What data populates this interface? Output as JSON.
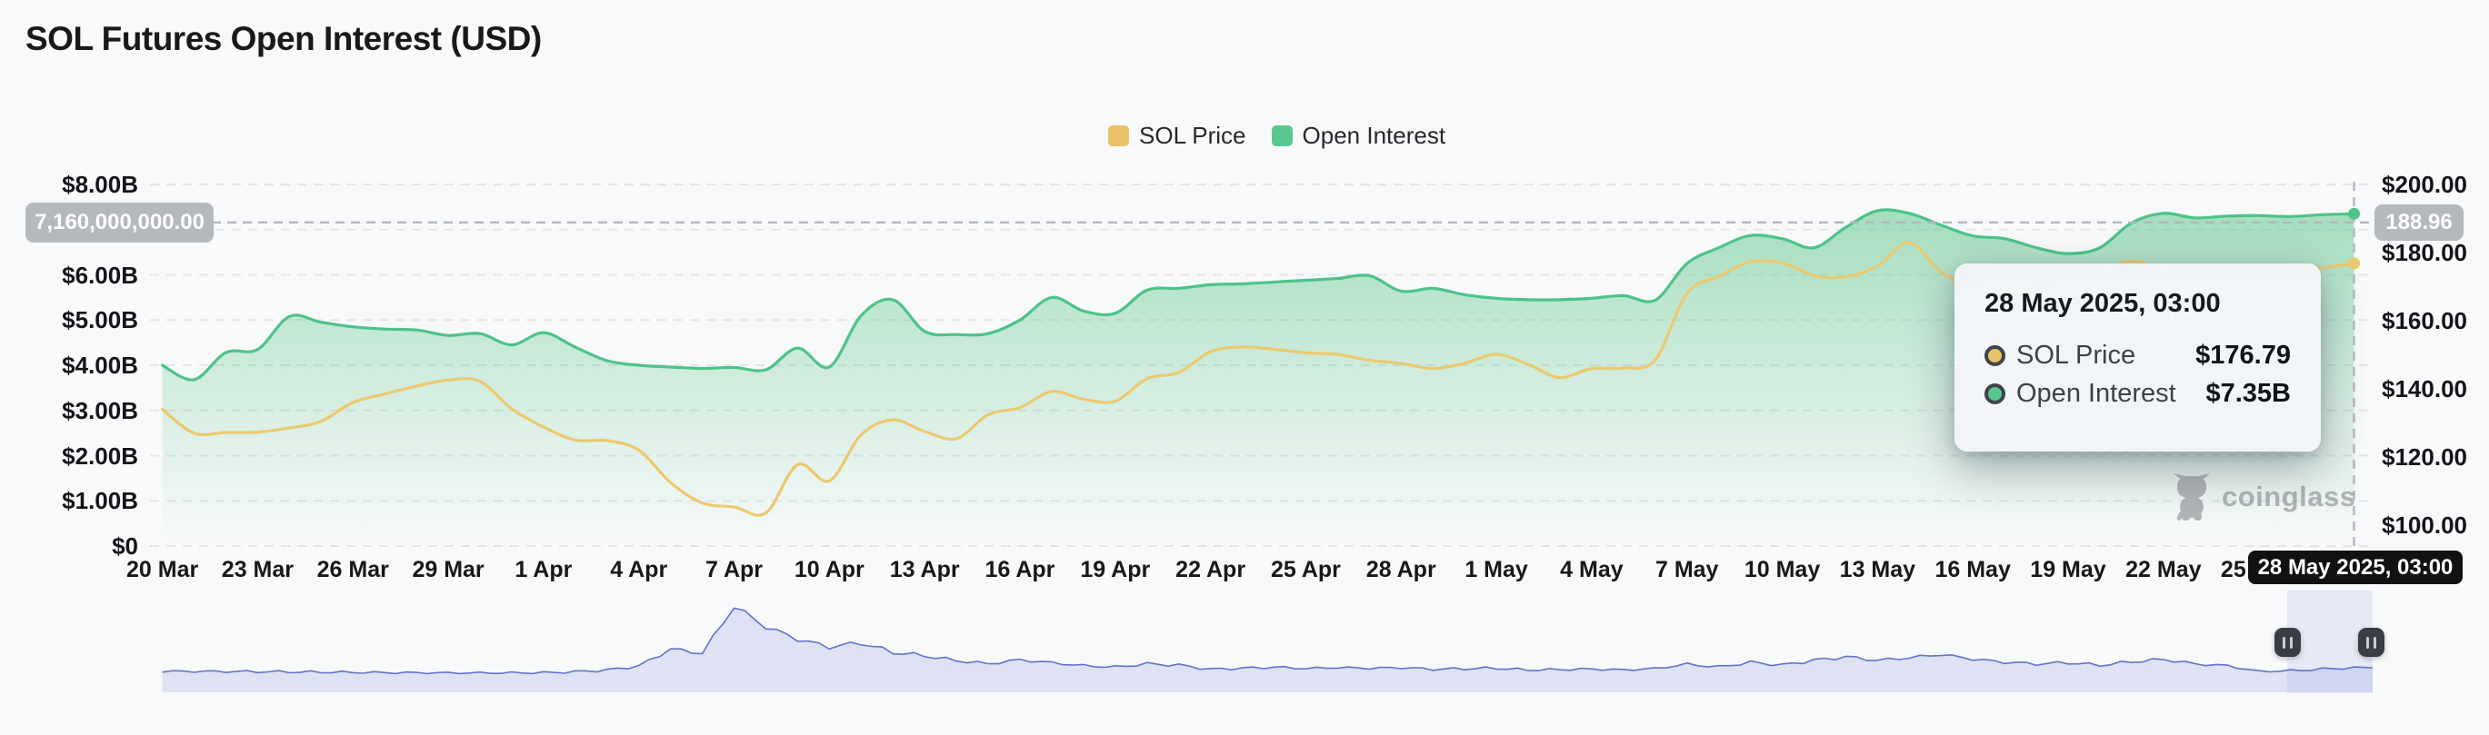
{
  "page": {
    "background": "#f8f9fa"
  },
  "header": {
    "title": "SOL Futures Open Interest (USD)"
  },
  "legend": {
    "items": [
      {
        "label": "SOL Price",
        "color": "#e7c269"
      },
      {
        "label": "Open Interest",
        "color": "#57c78d"
      }
    ]
  },
  "axes": {
    "left": {
      "ticks": [
        {
          "label": "$8.00B",
          "value": 8
        },
        {
          "label": "$6.00B",
          "value": 6
        },
        {
          "label": "$5.00B",
          "value": 5
        },
        {
          "label": "$4.00B",
          "value": 4
        },
        {
          "label": "$3.00B",
          "value": 3
        },
        {
          "label": "$2.00B",
          "value": 2
        },
        {
          "label": "$1.00B",
          "value": 1
        },
        {
          "label": "$0",
          "value": 0
        }
      ]
    },
    "right": {
      "ticks": [
        {
          "label": "$200.00",
          "value": 200
        },
        {
          "label": "$180.00",
          "value": 180
        },
        {
          "label": "$160.00",
          "value": 160
        },
        {
          "label": "$140.00",
          "value": 140
        },
        {
          "label": "$120.00",
          "value": 120
        },
        {
          "label": "$100.00",
          "value": 100
        }
      ]
    },
    "x": {
      "ticks": [
        "20 Mar",
        "23 Mar",
        "26 Mar",
        "29 Mar",
        "1 Apr",
        "4 Apr",
        "7 Apr",
        "10 Apr",
        "13 Apr",
        "16 Apr",
        "19 Apr",
        "22 Apr",
        "25 Apr",
        "28 Apr",
        "1 May",
        "4 May",
        "7 May",
        "10 May",
        "13 May",
        "16 May",
        "19 May",
        "22 May",
        "25 May"
      ],
      "tick_interval_days": 3
    }
  },
  "crosshair": {
    "left_axis_label": "7,160,000,000.00",
    "right_axis_label": "188.96",
    "date_label": "28 May 2025, 03:00",
    "day_index": 69,
    "oi_value": 7.16
  },
  "tooltip": {
    "date": "28 May 2025, 03:00",
    "rows": [
      {
        "label": "SOL Price",
        "value": "$176.79",
        "color": "#e7c269"
      },
      {
        "label": "Open Interest",
        "value": "$7.35B",
        "color": "#57c78d"
      }
    ]
  },
  "watermark": {
    "label": "coinglass"
  },
  "colors": {
    "background": "#f8f9fa",
    "oi_line": "#4cc389",
    "oi_fill": "#60c78d",
    "price_line": "#ecc96f",
    "grid": "#e3e5e8",
    "crosshair": "#b3b7bd",
    "pill_bg": "#b5b8bd",
    "date_pill_bg": "#101113",
    "nav_line": "#5f74c9",
    "nav_fill": "#dfe2f3",
    "handle_bg": "#3a3d45",
    "tooltip_bg": "#f3f5f8",
    "watermark_gray": "#9a9ea2"
  },
  "chart_data": {
    "type": "line",
    "title": "SOL Futures Open Interest (USD)",
    "grid": "dashed-horizontal",
    "legend_position": "top-center",
    "left_axis": {
      "name": "Open Interest (USD)",
      "min": 0,
      "max": 8,
      "unit": "billions USD"
    },
    "right_axis": {
      "name": "SOL Price (USD)",
      "min": 100,
      "max": 200
    },
    "x_dates": [
      "20 Mar",
      "21 Mar",
      "22 Mar",
      "23 Mar",
      "24 Mar",
      "25 Mar",
      "26 Mar",
      "27 Mar",
      "28 Mar",
      "29 Mar",
      "30 Mar",
      "31 Mar",
      "1 Apr",
      "2 Apr",
      "3 Apr",
      "4 Apr",
      "5 Apr",
      "6 Apr",
      "7 Apr",
      "8 Apr",
      "9 Apr",
      "10 Apr",
      "11 Apr",
      "12 Apr",
      "13 Apr",
      "14 Apr",
      "15 Apr",
      "16 Apr",
      "17 Apr",
      "18 Apr",
      "19 Apr",
      "20 Apr",
      "21 Apr",
      "22 Apr",
      "23 Apr",
      "24 Apr",
      "25 Apr",
      "26 Apr",
      "27 Apr",
      "28 Apr",
      "29 Apr",
      "30 Apr",
      "1 May",
      "2 May",
      "3 May",
      "4 May",
      "5 May",
      "6 May",
      "7 May",
      "8 May",
      "9 May",
      "10 May",
      "11 May",
      "12 May",
      "13 May",
      "14 May",
      "15 May",
      "16 May",
      "17 May",
      "18 May",
      "19 May",
      "20 May",
      "21 May",
      "22 May",
      "23 May",
      "24 May",
      "25 May",
      "26 May",
      "27 May",
      "28 May"
    ],
    "series": [
      {
        "name": "SOL Price",
        "yaxis": "right",
        "style": "line",
        "color": "#ecc96f",
        "values": [
          134.0,
          127.0,
          127.2,
          127.3,
          128.5,
          130.5,
          136.0,
          138.5,
          140.8,
          142.6,
          142.2,
          134.1,
          128.8,
          125.0,
          124.8,
          122.0,
          112.5,
          106.5,
          105.3,
          103.6,
          117.8,
          113.0,
          126.5,
          130.9,
          127.5,
          125.4,
          132.4,
          134.5,
          139.2,
          137.0,
          136.4,
          143.0,
          144.8,
          150.9,
          152.3,
          151.6,
          150.6,
          150.1,
          148.4,
          147.5,
          146.0,
          147.5,
          150.1,
          147.2,
          143.3,
          146.0,
          146.1,
          148.5,
          168.0,
          173.0,
          177.3,
          177.0,
          173.2,
          172.9,
          176.0,
          183.0,
          174.3,
          170.0,
          168.5,
          169.5,
          172.0,
          174.5,
          177.5,
          175.0,
          172.5,
          172.0,
          173.5,
          174.1,
          175.5,
          176.79
        ]
      },
      {
        "name": "Open Interest",
        "yaxis": "left",
        "style": "area",
        "color": "#4cc389",
        "values": [
          4.0,
          3.68,
          4.28,
          4.35,
          5.08,
          4.95,
          4.85,
          4.8,
          4.78,
          4.66,
          4.7,
          4.45,
          4.72,
          4.4,
          4.1,
          4.0,
          3.96,
          3.93,
          3.95,
          3.9,
          4.38,
          3.96,
          5.1,
          5.45,
          4.75,
          4.68,
          4.7,
          5.0,
          5.5,
          5.2,
          5.15,
          5.66,
          5.7,
          5.78,
          5.8,
          5.84,
          5.88,
          5.92,
          5.98,
          5.64,
          5.7,
          5.56,
          5.48,
          5.45,
          5.45,
          5.48,
          5.54,
          5.44,
          6.25,
          6.6,
          6.87,
          6.8,
          6.6,
          7.05,
          7.42,
          7.36,
          7.1,
          6.86,
          6.8,
          6.6,
          6.47,
          6.6,
          7.15,
          7.36,
          7.26,
          7.3,
          7.31,
          7.29,
          7.33,
          7.35
        ]
      }
    ],
    "navigator": {
      "values": [
        0.1,
        0.1,
        0.1,
        0.1,
        0.1,
        0.1,
        0.1,
        0.1,
        0.1,
        0.1,
        0.1,
        0.1,
        0.1,
        0.11,
        0.13,
        0.18,
        0.4,
        0.34,
        0.95,
        0.68,
        0.52,
        0.42,
        0.48,
        0.36,
        0.32,
        0.26,
        0.22,
        0.28,
        0.24,
        0.2,
        0.18,
        0.22,
        0.2,
        0.14,
        0.15,
        0.16,
        0.14,
        0.15,
        0.14,
        0.15,
        0.13,
        0.14,
        0.15,
        0.13,
        0.14,
        0.15,
        0.14,
        0.16,
        0.22,
        0.18,
        0.24,
        0.2,
        0.26,
        0.3,
        0.25,
        0.28,
        0.32,
        0.26,
        0.22,
        0.2,
        0.22,
        0.19,
        0.24,
        0.28,
        0.22,
        0.2,
        0.12,
        0.13,
        0.15,
        0.17
      ]
    }
  }
}
